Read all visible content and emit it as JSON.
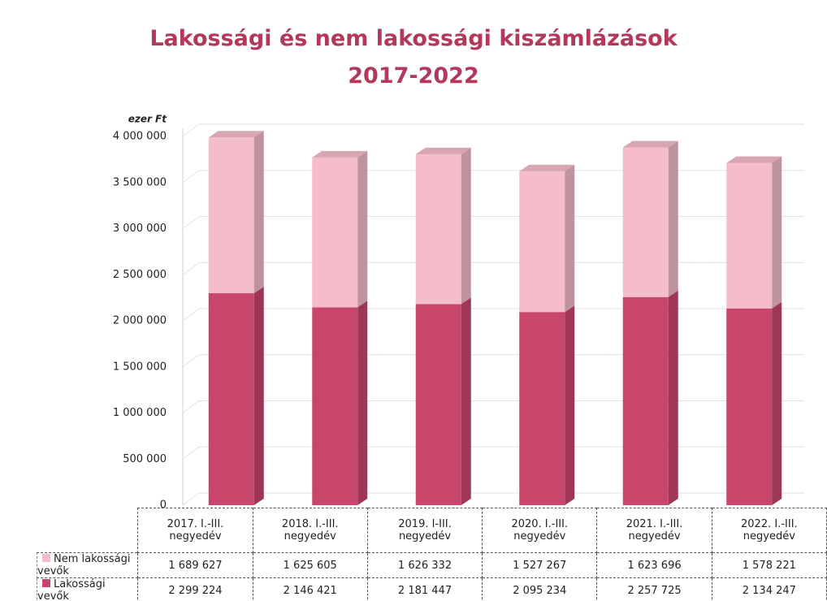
{
  "chart_data": {
    "type": "bar",
    "stacked": true,
    "title": "Lakossági és nem lakossági kiszámlázások",
    "subtitle": "2017-2022",
    "y_axis_label": "ezer Ft",
    "categories": [
      "2017. I.-III. negyedév",
      "2018. I.-III. negyedév",
      "2019. I-III. negyedév",
      "2020. I.-III. negyedév",
      "2021. I.-III. negyedév",
      "2022. I.-III. negyedév"
    ],
    "series": [
      {
        "name": "Lakossági vevők",
        "color": "#c9466b",
        "values": [
          2299224,
          2146421,
          2181447,
          2095234,
          2257725,
          2134247
        ],
        "value_labels": [
          "2 299 224",
          "2 146 421",
          "2 181 447",
          "2 095 234",
          "2 257 725",
          "2 134 247"
        ]
      },
      {
        "name": "Nem lakossági vevők",
        "color": "#f5bccb",
        "values": [
          1689627,
          1625605,
          1626332,
          1527267,
          1623696,
          1578221
        ],
        "value_labels": [
          "1 689 627",
          "1 625 605",
          "1 626 332",
          "1 527 267",
          "1 623 696",
          "1 578 221"
        ]
      }
    ],
    "ylim": [
      0,
      4000000
    ],
    "yticks": [
      0,
      {
        "value": 500000,
        "label": "500 000"
      },
      {
        "value": 1000000,
        "label": "1 000 000"
      },
      {
        "value": 1500000,
        "label": "1 500 000"
      },
      {
        "value": 2000000,
        "label": "2 000 000"
      },
      {
        "value": 2500000,
        "label": "2 500 000"
      },
      {
        "value": 3000000,
        "label": "3 000 000"
      },
      {
        "value": 3500000,
        "label": "3 500 000"
      },
      {
        "value": 4000000,
        "label": "4 000 000"
      }
    ],
    "grid": true
  }
}
